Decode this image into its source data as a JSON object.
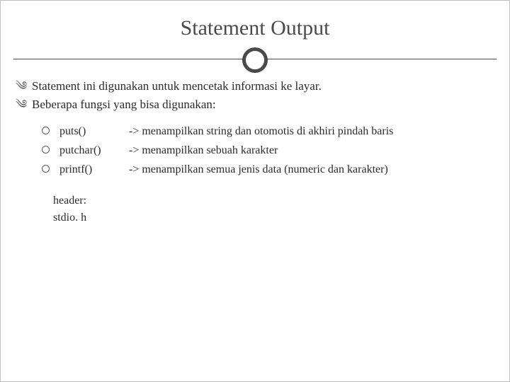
{
  "colors": {
    "text": "#2b2b2b",
    "title": "#4a4a4a",
    "line": "#4a4a4a",
    "bullet": "#5a5a5a",
    "background": "#ffffff",
    "border": "#bfbfbf"
  },
  "typography": {
    "title_fontsize": 30,
    "body_fontsize": 17,
    "sub_fontsize": 16,
    "family": "Georgia, serif"
  },
  "title": "Statement Output",
  "bullets": [
    "Statement ini digunakan untuk mencetak informasi ke layar.",
    "Beberapa fungsi yang bisa digunakan:"
  ],
  "functions": [
    {
      "name": "puts()",
      "desc": "-> menampilkan string dan otomotis di akhiri pindah baris"
    },
    {
      "name": "putchar()",
      "desc": "-> menampilkan sebuah karakter"
    },
    {
      "name": "printf()",
      "desc": "-> menampilkan semua jenis data (numeric dan karakter)"
    }
  ],
  "footer": {
    "line1": "header:",
    "line2": "stdio. h"
  }
}
